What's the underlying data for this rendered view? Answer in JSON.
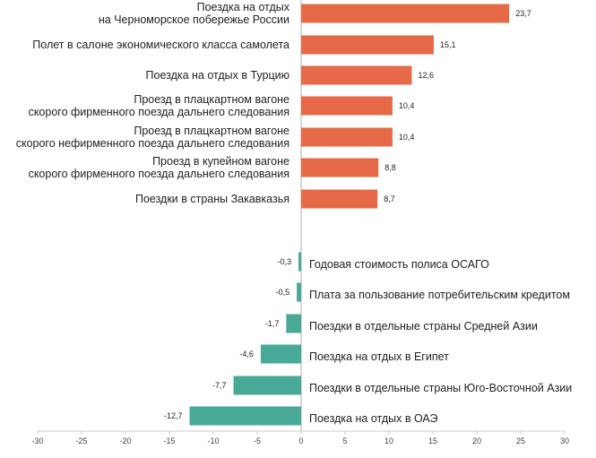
{
  "chart_data": {
    "type": "bar",
    "orientation": "horizontal",
    "xlim": [
      -30,
      30
    ],
    "xticks": [
      -30,
      -25,
      -20,
      -15,
      -10,
      -5,
      0,
      5,
      10,
      15,
      20,
      25,
      30
    ],
    "colors": {
      "positive": "#E66A47",
      "negative": "#48AA96"
    },
    "positive": [
      {
        "label": [
          "Поездка на отдых",
          "на Черноморское побережье России"
        ],
        "value": 23.7,
        "text": "23,7"
      },
      {
        "label": [
          "Полет в салоне экономического класса самолета"
        ],
        "value": 15.1,
        "text": "15,1"
      },
      {
        "label": [
          "Поездка на отдых в Турцию"
        ],
        "value": 12.6,
        "text": "12,6"
      },
      {
        "label": [
          "Проезд в плацкартном вагоне",
          "скорого фирменного поезда дальнего следования"
        ],
        "value": 10.4,
        "text": "10,4"
      },
      {
        "label": [
          "Проезд в плацкартном вагоне",
          "скорого нефирменного поезда дальнего следования"
        ],
        "value": 10.4,
        "text": "10,4"
      },
      {
        "label": [
          "Проезд в купейном вагоне",
          "скорого фирменного поезда дальнего следования"
        ],
        "value": 8.8,
        "text": "8,8"
      },
      {
        "label": [
          "Поездки в страны Закавказья"
        ],
        "value": 8.7,
        "text": "8,7"
      }
    ],
    "negative": [
      {
        "label": [
          "Годовая стоимость полиса ОСАГО"
        ],
        "value": -0.3,
        "text": "-0,3"
      },
      {
        "label": [
          "Плата за пользование потребительским кредитом"
        ],
        "value": -0.5,
        "text": "-0,5"
      },
      {
        "label": [
          "Поездки в отдельные страны Средней Азии"
        ],
        "value": -1.7,
        "text": "-1,7"
      },
      {
        "label": [
          "Поездка на отдых в Египет"
        ],
        "value": -4.6,
        "text": "-4,6"
      },
      {
        "label": [
          "Поездки в отдельные страны Юго-Восточной Азии"
        ],
        "value": -7.7,
        "text": "-7,7"
      },
      {
        "label": [
          "Поездка на отдых в ОАЭ"
        ],
        "value": -12.7,
        "text": "-12,7"
      }
    ]
  }
}
